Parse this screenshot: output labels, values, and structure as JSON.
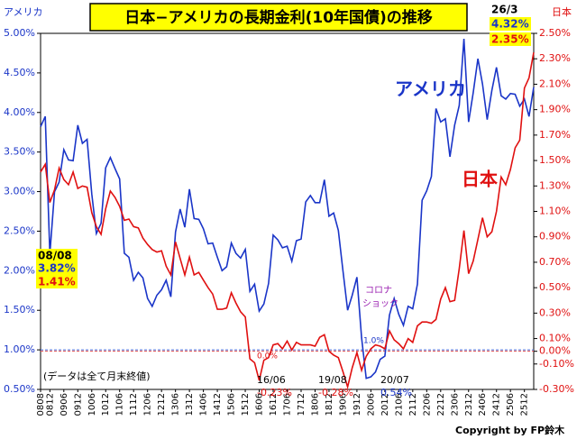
{
  "chart_data": {
    "type": "line",
    "title": "日本−アメリカの長期金利(10年国債)の推移",
    "y_label": "アメリカ",
    "y2_label": "日本",
    "categories": [
      "0808",
      null,
      "0812",
      null,
      null,
      "0906",
      null,
      null,
      "0912",
      null,
      null,
      "1006",
      null,
      null,
      "1012",
      null,
      null,
      "1106",
      null,
      null,
      "1112",
      null,
      null,
      "1206",
      null,
      null,
      "1212",
      null,
      null,
      "1306",
      null,
      null,
      "1312",
      null,
      null,
      "1406",
      null,
      null,
      "1412",
      null,
      null,
      "1506",
      null,
      null,
      "1512",
      null,
      null,
      "1606",
      null,
      null,
      "1612",
      null,
      null,
      "1706",
      null,
      null,
      "1712",
      null,
      null,
      "1806",
      null,
      null,
      "1812",
      null,
      null,
      "1906",
      null,
      null,
      "1912",
      null,
      null,
      "2006",
      null,
      null,
      "2012",
      null,
      null,
      "2106",
      null,
      null,
      "2112",
      null,
      null,
      "2206",
      null,
      null,
      "2212",
      null,
      null,
      "2306",
      null,
      null,
      "2312",
      null,
      null,
      "2406",
      null,
      null,
      "2412",
      null,
      null,
      "2506",
      null,
      null,
      "2512",
      null,
      null
    ],
    "series": [
      {
        "name": "アメリカ",
        "color": "#1a35c8",
        "axis": "y",
        "values": [
          3.82,
          3.95,
          2.21,
          3.0,
          3.12,
          3.53,
          3.4,
          3.39,
          3.84,
          3.61,
          3.66,
          2.97,
          2.47,
          2.6,
          3.3,
          3.43,
          3.29,
          3.16,
          2.22,
          2.17,
          1.88,
          1.98,
          1.91,
          1.65,
          1.55,
          1.69,
          1.76,
          1.88,
          1.67,
          2.49,
          2.78,
          2.55,
          3.03,
          2.66,
          2.65,
          2.53,
          2.34,
          2.35,
          2.17,
          2.0,
          2.05,
          2.35,
          2.22,
          2.16,
          2.27,
          1.74,
          1.83,
          1.49,
          1.58,
          1.84,
          2.45,
          2.39,
          2.29,
          2.31,
          2.12,
          2.38,
          2.4,
          2.87,
          2.95,
          2.86,
          2.86,
          3.15,
          2.69,
          2.73,
          2.51,
          2.0,
          1.5,
          1.69,
          1.92,
          1.15,
          0.64,
          0.66,
          0.72,
          0.88,
          0.92,
          1.44,
          1.65,
          1.45,
          1.31,
          1.55,
          1.52,
          1.83,
          2.89,
          3.01,
          3.19,
          4.05,
          3.88,
          3.92,
          3.44,
          3.84,
          4.09,
          4.93,
          3.88,
          4.25,
          4.68,
          4.36,
          3.91,
          4.28,
          4.57,
          4.21,
          4.17,
          4.24,
          4.23,
          4.08,
          4.17,
          3.95,
          4.32
        ]
      },
      {
        "name": "日本",
        "color": "#e01010",
        "axis": "y2",
        "values": [
          1.41,
          1.47,
          1.17,
          1.27,
          1.44,
          1.35,
          1.31,
          1.41,
          1.28,
          1.3,
          1.29,
          1.09,
          0.98,
          0.92,
          1.12,
          1.26,
          1.21,
          1.14,
          1.03,
          1.04,
          0.98,
          0.97,
          0.89,
          0.84,
          0.8,
          0.78,
          0.79,
          0.67,
          0.6,
          0.86,
          0.73,
          0.6,
          0.74,
          0.6,
          0.62,
          0.56,
          0.5,
          0.45,
          0.33,
          0.33,
          0.34,
          0.46,
          0.38,
          0.31,
          0.27,
          -0.06,
          -0.09,
          -0.23,
          -0.07,
          -0.05,
          0.05,
          0.06,
          0.02,
          0.08,
          0.01,
          0.07,
          0.05,
          0.05,
          0.05,
          0.04,
          0.11,
          0.13,
          0.0,
          -0.03,
          -0.05,
          -0.16,
          -0.28,
          -0.13,
          -0.01,
          -0.15,
          -0.04,
          0.02,
          0.05,
          0.04,
          0.02,
          0.16,
          0.09,
          0.06,
          0.02,
          0.1,
          0.07,
          0.2,
          0.23,
          0.23,
          0.22,
          0.25,
          0.41,
          0.5,
          0.39,
          0.4,
          0.65,
          0.95,
          0.61,
          0.71,
          0.88,
          1.05,
          0.9,
          0.94,
          1.1,
          1.37,
          1.31,
          1.43,
          1.6,
          1.66,
          2.07,
          2.15,
          2.35
        ]
      }
    ],
    "ylim": [
      0.5,
      5.0
    ],
    "yticks": [
      {
        "value": 0.5,
        "label": "0.50%"
      },
      {
        "value": 1.0,
        "label": "1.00%"
      },
      {
        "value": 1.5,
        "label": "1.50%"
      },
      {
        "value": 2.0,
        "label": "2.00%"
      },
      {
        "value": 2.5,
        "label": "2.50%"
      },
      {
        "value": 3.0,
        "label": "3.00%"
      },
      {
        "value": 3.5,
        "label": "3.50%"
      },
      {
        "value": 4.0,
        "label": "4.00%"
      },
      {
        "value": 4.5,
        "label": "4.50%"
      },
      {
        "value": 5.0,
        "label": "5.00%"
      }
    ],
    "y2lim": [
      -0.3,
      2.5
    ],
    "y2ticks": [
      {
        "value": -0.3,
        "label": "-0.30%"
      },
      {
        "value": -0.1,
        "label": "-0.10%"
      },
      {
        "value": 0.0,
        "label": "0.00%"
      },
      {
        "value": 0.1,
        "label": "0.10%"
      },
      {
        "value": 0.3,
        "label": "0.30%"
      },
      {
        "value": 0.5,
        "label": "0.50%"
      },
      {
        "value": 0.7,
        "label": "0.70%"
      },
      {
        "value": 0.9,
        "label": "0.90%"
      },
      {
        "value": 1.1,
        "label": "1.10%"
      },
      {
        "value": 1.3,
        "label": "1.30%"
      },
      {
        "value": 1.5,
        "label": "1.50%"
      },
      {
        "value": 1.7,
        "label": "1.70%"
      },
      {
        "value": 1.9,
        "label": "1.90%"
      },
      {
        "value": 2.1,
        "label": "2.10%"
      },
      {
        "value": 2.3,
        "label": "2.30%"
      },
      {
        "value": 2.5,
        "label": "2.50%"
      }
    ],
    "reference_lines": [
      {
        "axis": "y",
        "value": 1.0,
        "color": "#4a6ad8"
      },
      {
        "axis": "y2",
        "value": 0.0,
        "color": "#e05050"
      }
    ],
    "annotations": [
      "08/08",
      "3.82%",
      "1.41%",
      "26/3",
      "4.32%",
      "2.35%",
      "16/06",
      "-0.23%",
      "19/08",
      "-0.28%",
      "20/07",
      "0.54%",
      "(データは全て月末終値)",
      "コロナ",
      "ショック",
      "1.0%",
      "0.0%",
      "Copyright by FP鈴木"
    ]
  }
}
